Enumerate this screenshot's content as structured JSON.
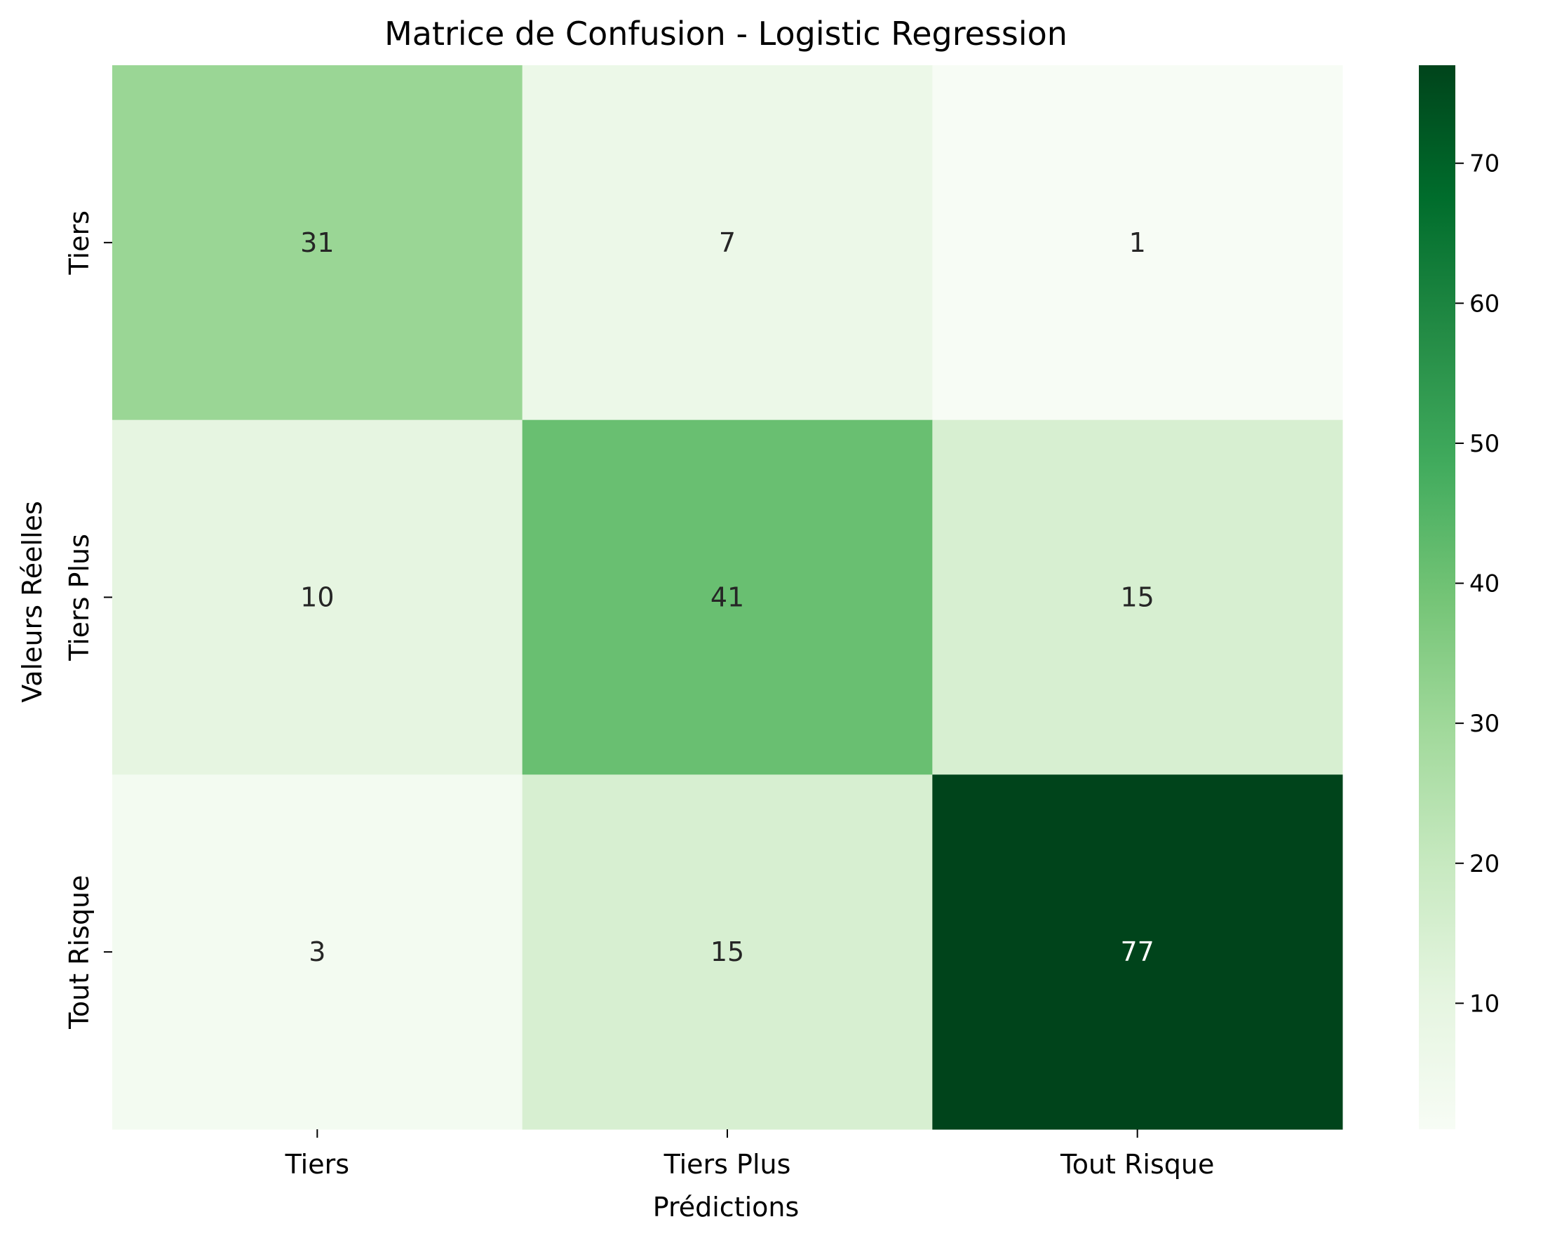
{
  "chart_data": {
    "type": "heatmap",
    "title": "Matrice de Confusion - Logistic Regression",
    "xlabel": "Prédictions",
    "ylabel": "Valeurs Réelles",
    "x_categories": [
      "Tiers",
      "Tiers Plus",
      "Tout Risque"
    ],
    "y_categories": [
      "Tiers",
      "Tiers Plus",
      "Tout Risque"
    ],
    "values": [
      [
        31,
        7,
        1
      ],
      [
        10,
        41,
        15
      ],
      [
        3,
        15,
        77
      ]
    ],
    "colormap": "Greens",
    "color_range": [
      1,
      77
    ],
    "colorbar_ticks": [
      10,
      20,
      30,
      40,
      50,
      60,
      70
    ],
    "colors": {
      "low": "#f7fcf5",
      "high": "#00441b"
    }
  }
}
